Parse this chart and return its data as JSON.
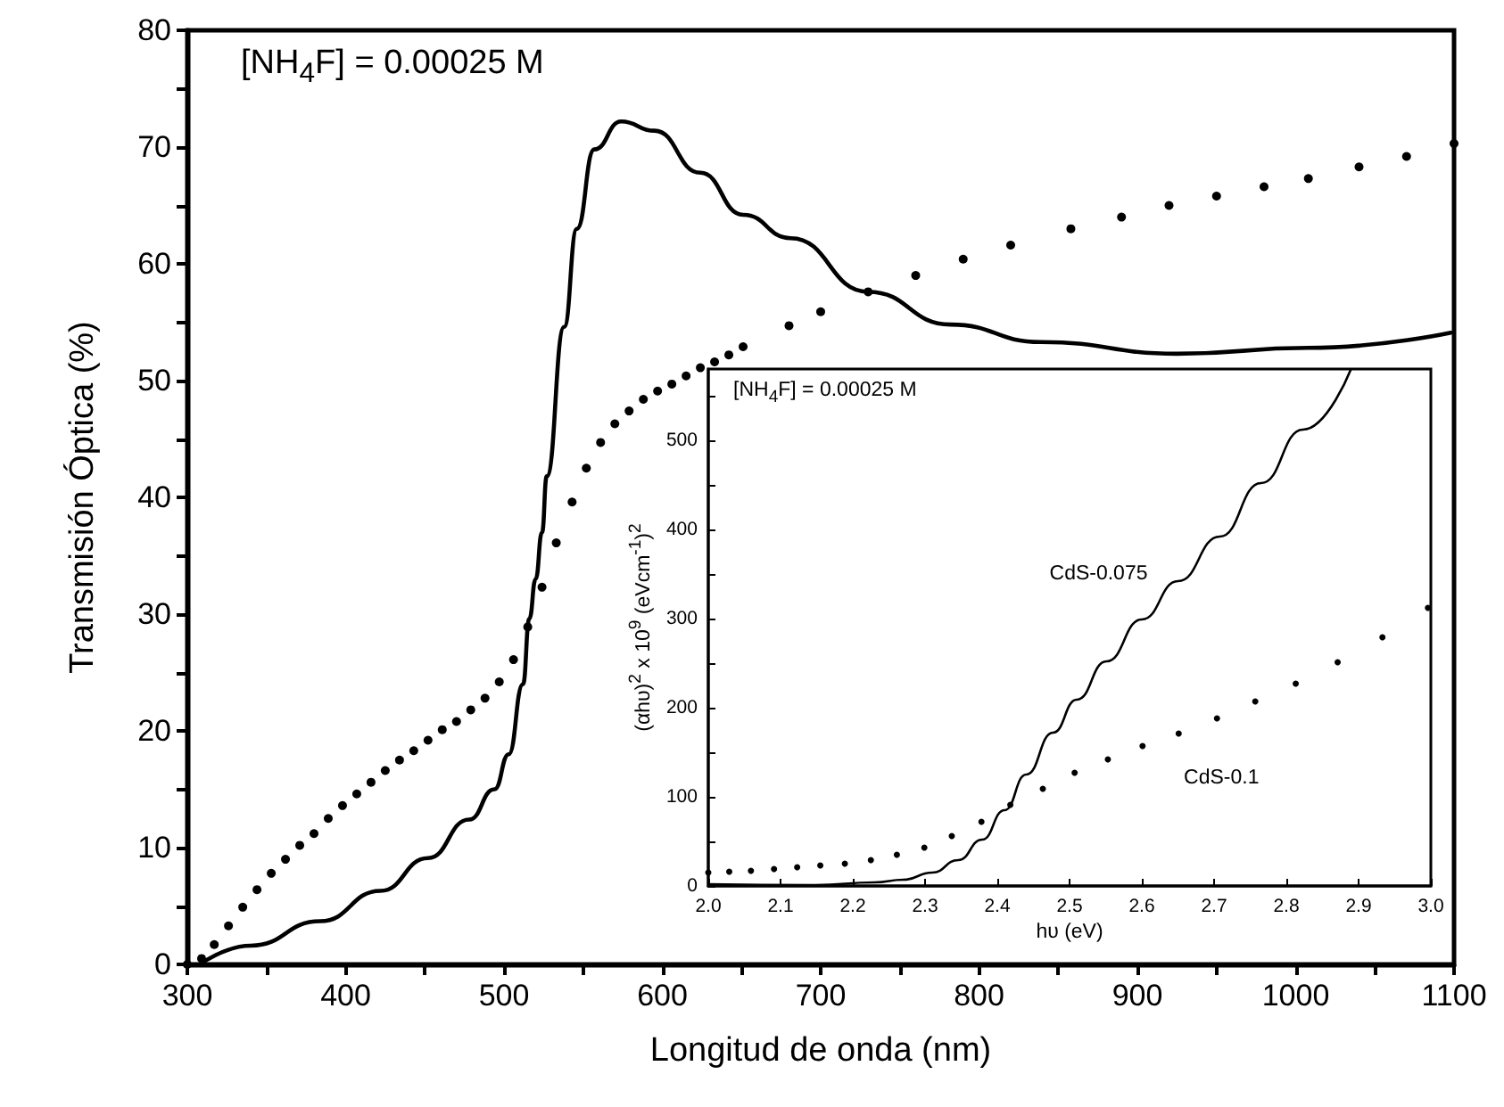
{
  "chart_data": [
    {
      "type": "line",
      "xlabel": "Longitud de onda (nm)",
      "ylabel": "Transmisión Óptica (%)",
      "annotations": [
        "[NH$_{4}$F] = 0.00025 M"
      ],
      "xlim": [
        300,
        1100
      ],
      "ylim": [
        0,
        80
      ],
      "xticks": [
        300,
        {
          "value": 350,
          "label": null
        },
        400,
        {
          "value": 450,
          "label": null
        },
        500,
        {
          "value": 550,
          "label": null
        },
        600,
        {
          "value": 650,
          "label": null
        },
        700,
        {
          "value": 750,
          "label": null
        },
        800,
        {
          "value": 850,
          "label": null
        },
        900,
        {
          "value": 950,
          "label": null
        },
        1000,
        {
          "value": 1050,
          "label": null
        },
        1100
      ],
      "yticks": [
        0,
        {
          "value": 5,
          "label": null
        },
        10,
        {
          "value": 15,
          "label": null
        },
        20,
        {
          "value": 25,
          "label": null
        },
        30,
        {
          "value": 35,
          "label": null
        },
        40,
        {
          "value": 45,
          "label": null
        },
        50,
        {
          "value": 55,
          "label": null
        },
        60,
        {
          "value": 65,
          "label": null
        },
        70,
        {
          "value": 75,
          "label": null
        },
        80
      ],
      "grid": false,
      "legend": false,
      "series": [
        {
          "type": "line",
          "color": "#000000",
          "marker": "none",
          "line_style": "solid",
          "x": [
            308,
            340,
            384,
            422,
            452,
            478,
            494,
            503,
            512,
            516,
            520,
            524,
            527,
            538,
            546,
            557,
            574,
            595,
            624,
            651,
            681,
            730,
            782,
            839,
            925,
            1008,
            1098
          ],
          "values": [
            0,
            1.6,
            3.7,
            6.3,
            9.1,
            12.4,
            15,
            18,
            24,
            29.6,
            33,
            37,
            41.8,
            54.6,
            63,
            69.8,
            72.2,
            71.4,
            67.8,
            64.2,
            62.2,
            57.6,
            54.8,
            53.3,
            52.3,
            52.8,
            54.1
          ]
        },
        {
          "type": "scatter",
          "color": "#000000",
          "marker": "circle",
          "x": [
            300,
            309,
            317,
            326,
            335,
            344,
            353,
            362,
            371,
            380,
            389,
            398,
            407,
            416,
            425,
            434,
            443,
            452,
            461,
            470,
            479,
            488,
            497,
            506,
            515,
            524,
            533,
            543,
            552,
            561,
            570,
            579,
            588,
            597,
            606,
            615,
            624,
            633,
            642,
            651,
            680,
            700,
            730,
            760,
            790,
            820,
            858,
            890,
            920,
            950,
            980,
            1008,
            1040,
            1070,
            1100
          ],
          "values": [
            0,
            0.5,
            1.7,
            3.3,
            4.9,
            6.4,
            7.8,
            9,
            10.2,
            11.2,
            12.5,
            13.6,
            14.6,
            15.6,
            16.6,
            17.5,
            18.3,
            19.2,
            20.1,
            20.8,
            21.8,
            22.8,
            24.2,
            26.1,
            28.9,
            32.3,
            36.1,
            39.6,
            42.5,
            44.7,
            46.3,
            47.4,
            48.4,
            49.1,
            49.7,
            50.4,
            51.1,
            51.6,
            52.2,
            52.9,
            54.7,
            55.9,
            57.6,
            59.0,
            60.4,
            61.6,
            63.0,
            64.0,
            65.0,
            65.8,
            66.6,
            67.3,
            68.3,
            69.2,
            70.3
          ]
        }
      ]
    },
    {
      "type": "line",
      "xlabel": "hυ (eV)",
      "ylabel": "(αhυ)$^{2}$ x 10$^{9}$ (eVcm$^{-1}$)$^{2}$",
      "annotations": [
        "[NH$_{4}$F] = 0.00025 M"
      ],
      "xlim": [
        2.0,
        3.0
      ],
      "ylim": [
        0,
        580
      ],
      "xticks": [
        {
          "value": 2.0,
          "label": "2.0"
        },
        2.1,
        2.2,
        2.3,
        2.4,
        2.5,
        2.6,
        2.7,
        2.8,
        2.9,
        {
          "value": 3.0,
          "label": "3.0"
        }
      ],
      "yticks": [
        0,
        {
          "value": 50,
          "label": null
        },
        100,
        {
          "value": 150,
          "label": null
        },
        200,
        {
          "value": 250,
          "label": null
        },
        300,
        {
          "value": 350,
          "label": null
        },
        400,
        {
          "value": 450,
          "label": null
        },
        500,
        {
          "value": 550,
          "label": null
        }
      ],
      "grid": false,
      "legend": false,
      "series": [
        {
          "name": "CdS-0.075",
          "type": "line",
          "color": "#000000",
          "marker": "none",
          "line_style": "solid",
          "x": [
            2.0,
            2.148,
            2.23,
            2.27,
            2.31,
            2.346,
            2.379,
            2.41,
            2.44,
            2.477,
            2.51,
            2.551,
            2.6,
            2.65,
            2.708,
            2.765,
            2.823,
            2.889
          ],
          "values": [
            2,
            1,
            4,
            7,
            15,
            29,
            52,
            85,
            125,
            172,
            209,
            252,
            299,
            342,
            392,
            452,
            512,
            579
          ]
        },
        {
          "name": "CdS-0.1",
          "type": "scatter",
          "color": "#000000",
          "marker": "circle",
          "x": [
            2.0,
            2.029,
            2.059,
            2.091,
            2.123,
            2.155,
            2.189,
            2.225,
            2.261,
            2.299,
            2.337,
            2.378,
            2.418,
            2.463,
            2.507,
            2.553,
            2.601,
            2.651,
            2.704,
            2.757,
            2.813,
            2.871,
            2.933,
            2.996
          ],
          "values": [
            15,
            16,
            17,
            19,
            21,
            23,
            25,
            29,
            35,
            43,
            56,
            72,
            91,
            109,
            127,
            142,
            157,
            171,
            188,
            207,
            227,
            251,
            279,
            312
          ]
        }
      ]
    }
  ]
}
